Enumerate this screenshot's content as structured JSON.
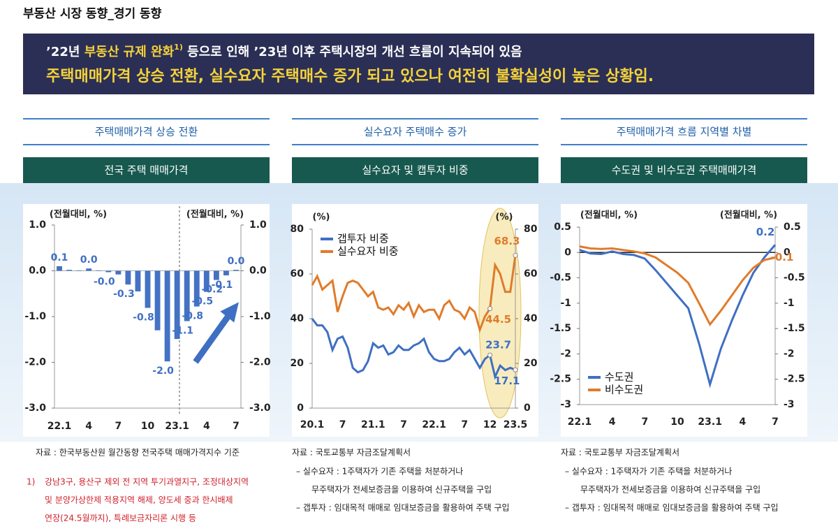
{
  "header": {
    "title": "부동산 시장 동향_경기 동향"
  },
  "banner": {
    "line1": [
      "’22년 ",
      "부동산 규제 완화",
      "1)",
      " 등으로 인해 ’23년 이후 주택시장의 개선 흐름이 지속되어 있음"
    ],
    "line2": "주택매매가격 상승 전환, 실수요자 주택매수 증가 되고 있으나 여전히 불확실성이 높은 상황임."
  },
  "panels": [
    {
      "section": "주택매매가격 상승 전환",
      "subtitle": "전국 주택 매매가격",
      "source": "자료 : 한국부동산원 월간동향 전국주택 매매가격지수 기준"
    },
    {
      "section": "실수요자 주택매수 증가",
      "subtitle": "실수요자 및 캡투자 비중",
      "source": "자료 : 국토교통부 자금조달계획서",
      "notes": [
        "–  실수요자 : 1주택자가 기존 주택을 처분하거나",
        "무주택자가 전세보증금을 이용하여 신규주택을 구입",
        "–  갭투자 : 임대목적 매매로 임대보증금을 활용하여 주택 구입"
      ]
    },
    {
      "section": "주택매매가격 흐름 지역별 차별",
      "subtitle": "수도권 및 비수도권 주택매매가격",
      "source": "자료 : 국토교통부 자금조달계획서",
      "notes": [
        "–  실수요자 : 1주택자가 기존 주택을 처분하거나",
        "무주택자가 전세보증금을 이용하여 신규주택을 구입",
        "–  갭투자 : 임대목적 매매로 임대보증금을 활용하여 주택 구입"
      ]
    }
  ],
  "footnote": {
    "marker": "1)",
    "lines": [
      "강남3구, 용산구 제외 전 지역 투기과열지구, 조정대상지역",
      "및 분양가상한제 적용지역 해제, 양도세 중과 한시배제",
      "연장(24.5월까지), 특례보금자리론 시행 등"
    ]
  },
  "chart_data": [
    {
      "type": "bar",
      "y_label": "(전월대비, %)",
      "y2_label": "(전월대비, %)",
      "color": "#4472c4",
      "grid": false,
      "categories": [
        "22.1",
        null,
        null,
        "4",
        null,
        null,
        "7",
        null,
        null,
        "10",
        null,
        null,
        "23.1",
        null,
        null,
        "4",
        null,
        null,
        "7"
      ],
      "values": [
        0.1,
        0.02,
        0.01,
        0.05,
        0.01,
        -0.03,
        -0.08,
        -0.3,
        -0.45,
        -0.81,
        -1.3,
        -1.98,
        -1.49,
        -1.1,
        -0.78,
        -0.46,
        -0.2,
        -0.1,
        0.02
      ],
      "value_labels": [
        "0.1",
        null,
        null,
        "0.0",
        null,
        "-0.0",
        null,
        "-0.3",
        null,
        "-0.8",
        null,
        "-2.0",
        null,
        "-1.1",
        "-0.8",
        "-0.5",
        "-0.2",
        "-0.1",
        "0.0"
      ],
      "ylim": [
        -3,
        1
      ],
      "yticks": [
        {
          "value": 1,
          "label": "1.0"
        },
        {
          "value": 0,
          "label": "0.0"
        },
        {
          "value": -1,
          "label": "-1.0"
        },
        {
          "value": -2,
          "label": "-2.0"
        },
        {
          "value": -3,
          "label": "-3.0"
        }
      ],
      "y2lim": [
        -3,
        1
      ],
      "y2ticks": [
        {
          "value": 1,
          "label": "1.0"
        },
        {
          "value": 0,
          "label": "0.0"
        },
        {
          "value": -1,
          "label": "-1.0"
        },
        {
          "value": -2,
          "label": "-2.0"
        },
        {
          "value": -3,
          "label": "-3.0"
        }
      ]
    },
    {
      "type": "line",
      "y_label": "(%)",
      "y2_label": "(%)",
      "legend": "top-left",
      "grid": false,
      "categories": [
        "20.1",
        null,
        null,
        null,
        null,
        null,
        "7",
        null,
        null,
        null,
        null,
        null,
        "21.1",
        null,
        null,
        null,
        null,
        null,
        "7",
        null,
        null,
        null,
        null,
        null,
        "22.1",
        null,
        null,
        null,
        null,
        null,
        "7",
        null,
        null,
        null,
        null,
        "12",
        null,
        null,
        null,
        null,
        "23.5"
      ],
      "series": [
        {
          "name": "갭투자 비중",
          "color": "#3f6fc2",
          "values": [
            40,
            37,
            37,
            34,
            26,
            31,
            32,
            27,
            18,
            16,
            17,
            21,
            29,
            27,
            28,
            24,
            25,
            28,
            26,
            26,
            28,
            29,
            31,
            25,
            22,
            21,
            21,
            22,
            25,
            27,
            24,
            26,
            22,
            18,
            22,
            23.7,
            14,
            19,
            17,
            18,
            17.1
          ],
          "value_labels": [
            null,
            null,
            null,
            null,
            null,
            null,
            null,
            null,
            null,
            null,
            null,
            null,
            null,
            null,
            null,
            null,
            null,
            null,
            null,
            null,
            null,
            null,
            null,
            null,
            null,
            null,
            null,
            null,
            null,
            null,
            null,
            null,
            null,
            null,
            null,
            "23.7",
            null,
            null,
            null,
            null,
            "17.1"
          ]
        },
        {
          "name": "실수요자 비중",
          "color": "#e07b2a",
          "values": [
            55,
            59,
            53,
            55,
            57,
            43,
            50,
            56,
            57,
            56,
            53,
            50,
            52,
            45,
            44,
            45,
            42,
            46,
            44,
            47,
            41,
            46,
            43,
            44,
            44,
            40,
            46,
            48,
            44,
            43,
            40,
            45,
            43,
            35,
            41,
            44.5,
            64,
            60,
            52,
            52,
            68.3
          ],
          "value_labels": [
            null,
            null,
            null,
            null,
            null,
            null,
            null,
            null,
            null,
            null,
            null,
            null,
            null,
            null,
            null,
            null,
            null,
            null,
            null,
            null,
            null,
            null,
            null,
            null,
            null,
            null,
            null,
            null,
            null,
            null,
            null,
            null,
            null,
            null,
            null,
            "44.5",
            null,
            null,
            null,
            null,
            "68.3"
          ]
        }
      ],
      "ylim": [
        0,
        80
      ],
      "yticks": [
        0,
        20,
        40,
        60,
        80
      ],
      "y2lim": [
        0,
        80
      ],
      "y2ticks": [
        0,
        20,
        40,
        60,
        80
      ]
    },
    {
      "type": "line",
      "y_label": "(전월대비, %)",
      "y2_label": "(전월대비, %)",
      "legend": "bottom-left",
      "grid": false,
      "categories": [
        "22.1",
        null,
        null,
        "4",
        null,
        null,
        "7",
        null,
        null,
        "10",
        null,
        null,
        "23.1",
        null,
        null,
        "4",
        null,
        null,
        "7"
      ],
      "series": [
        {
          "name": "수도권",
          "color": "#3f6fc2",
          "values": [
            0.05,
            -0.02,
            -0.03,
            0.02,
            -0.03,
            -0.05,
            -0.12,
            -0.35,
            -0.6,
            -0.85,
            -1.1,
            -1.8,
            -2.6,
            -1.9,
            -1.35,
            -0.85,
            -0.4,
            -0.1,
            0.15
          ],
          "value_labels": [
            null,
            null,
            null,
            null,
            null,
            null,
            null,
            null,
            null,
            null,
            null,
            null,
            null,
            null,
            null,
            null,
            null,
            null,
            "0.2"
          ]
        },
        {
          "name": "비수도권",
          "color": "#e07b2a",
          "values": [
            0.12,
            0.08,
            0.07,
            0.08,
            0.05,
            0.02,
            -0.02,
            -0.1,
            -0.25,
            -0.4,
            -0.6,
            -1.0,
            -1.42,
            -1.15,
            -0.85,
            -0.55,
            -0.3,
            -0.15,
            -0.1
          ],
          "value_labels": [
            null,
            null,
            null,
            null,
            null,
            null,
            null,
            null,
            null,
            null,
            null,
            null,
            null,
            null,
            null,
            null,
            null,
            null,
            "-0.1"
          ]
        }
      ],
      "ylim": [
        -3,
        0.5
      ],
      "yticks": [
        0.5,
        0,
        -0.5,
        -1,
        -1.5,
        -2,
        -2.5,
        -3
      ],
      "y2lim": [
        -3,
        0.5
      ],
      "y2ticks": [
        0.5,
        0,
        -0.5,
        -1,
        -1.5,
        -2,
        -2.5,
        -3
      ]
    }
  ]
}
